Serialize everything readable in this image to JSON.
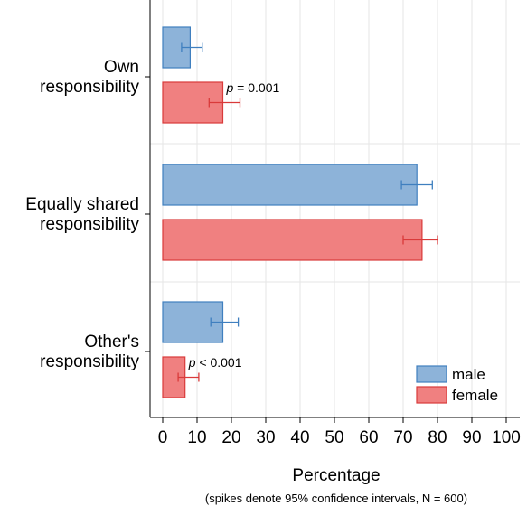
{
  "chart_data": {
    "type": "bar",
    "orientation": "horizontal",
    "title": "",
    "xlabel": "Percentage",
    "note": "(spikes denote 95% confidence intervals, N = 600)",
    "xlim": [
      0,
      100
    ],
    "xticks": [
      0,
      10,
      20,
      30,
      40,
      50,
      60,
      70,
      80,
      90,
      100
    ],
    "grid": true,
    "categories": [
      {
        "lines": [
          "Own",
          "responsibility"
        ],
        "p_label_prefix": "p",
        "p_label_rest": " = 0.001"
      },
      {
        "lines": [
          "Equally shared",
          "responsibility"
        ],
        "p_label_prefix": "",
        "p_label_rest": ""
      },
      {
        "lines": [
          "Other's",
          "responsibility"
        ],
        "p_label_prefix": "p",
        "p_label_rest": " < 0.001"
      }
    ],
    "series": [
      {
        "name": "male",
        "color": "#8db3d9",
        "edge": "#3f7fbf",
        "values": [
          8,
          74,
          17.5
        ],
        "ci_low": [
          5.5,
          69.5,
          14
        ],
        "ci_high": [
          11.5,
          78.5,
          22
        ]
      },
      {
        "name": "female",
        "color": "#f08080",
        "edge": "#d93a3a",
        "values": [
          17.5,
          75.5,
          6.5
        ],
        "ci_low": [
          13.5,
          70,
          4.5
        ],
        "ci_high": [
          22.5,
          80,
          10.5
        ]
      }
    ],
    "legend_position": "bottom-right"
  }
}
